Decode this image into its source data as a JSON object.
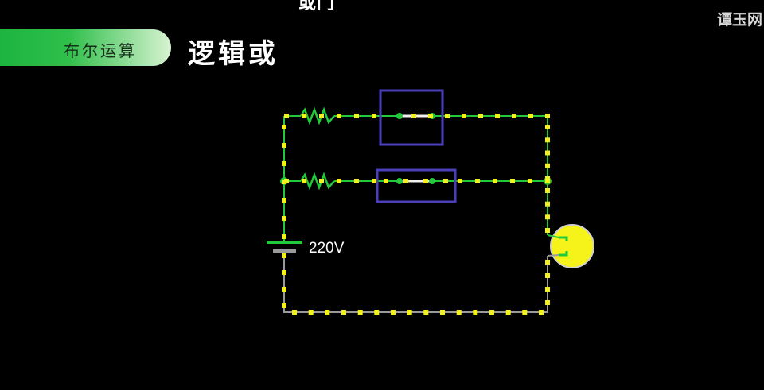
{
  "header": {
    "top_cut_text": "或门",
    "watermark": "谭玉网"
  },
  "banner": {
    "label": "布尔运算"
  },
  "title": "逻辑或",
  "circuit": {
    "source_voltage": "220V",
    "colors": {
      "wire_live": "#22c93a",
      "wire_neutral": "#9a9a9a",
      "electron": "#f4f01a",
      "switch_box": "#4a3fb8",
      "bulb": "#f6f31a",
      "background": "#000000"
    },
    "switches": [
      {
        "name": "switch-a",
        "state": "closed"
      },
      {
        "name": "switch-b",
        "state": "closed"
      }
    ],
    "bulb": {
      "state": "on"
    },
    "icons": [
      "resistor-icon",
      "battery-icon",
      "bulb-icon",
      "switch-icon"
    ]
  }
}
